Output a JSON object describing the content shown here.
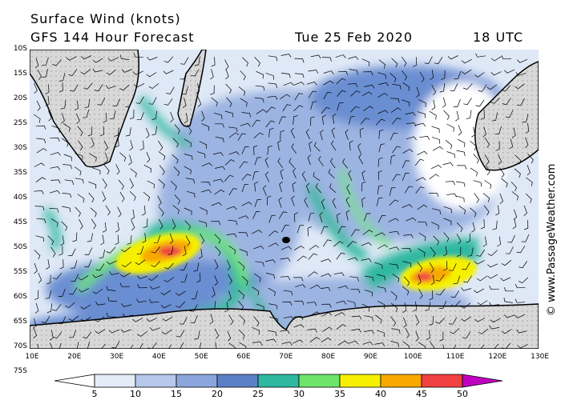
{
  "header": {
    "line1": "Surface Wind (knots)",
    "line2": "GFS 144 Hour Forecast",
    "date": "Tue 25 Feb 2020",
    "utc": "18 UTC"
  },
  "copyright": "© www.PassageWeather.com",
  "lat_labels": [
    "10S",
    "15S",
    "20S",
    "25S",
    "30S",
    "35S",
    "40S",
    "45S",
    "50S",
    "55S",
    "60S",
    "65S",
    "70S",
    "75S"
  ],
  "lon_labels": [
    "10E",
    "20E",
    "30E",
    "40E",
    "50E",
    "60E",
    "70E",
    "80E",
    "90E",
    "100E",
    "110E",
    "120E",
    "130E"
  ],
  "colorbar": {
    "labels": [
      "5",
      "10",
      "15",
      "20",
      "25",
      "30",
      "35",
      "40",
      "45",
      "50"
    ],
    "colors": [
      "#e4ecf8",
      "#b8c8ec",
      "#8aa6dc",
      "#5c80c8",
      "#2eb8a0",
      "#6ee46a",
      "#f6f000",
      "#f8a800",
      "#f04040",
      "#c00000",
      "#c000c0"
    ]
  },
  "colors": {
    "low": "#dfe8f6",
    "mid": "#9cb4e2",
    "high": "#6a8ed2",
    "land": "#cfcfcf"
  }
}
